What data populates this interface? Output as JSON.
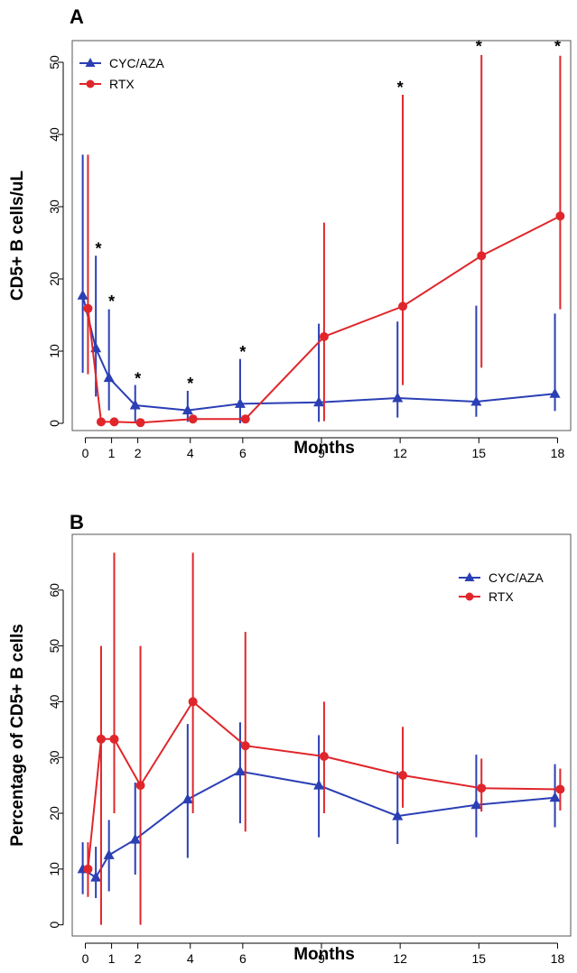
{
  "chart_data": [
    {
      "panel": "A",
      "type": "line",
      "xlabel": "Months",
      "ylabel": "CD5+ B cells/uL",
      "xticks": [
        "0",
        "1",
        "2",
        "4",
        "6",
        "9",
        "12",
        "15",
        "18"
      ],
      "yticks": [
        "0",
        "10",
        "20",
        "30",
        "40",
        "50"
      ],
      "xlim": [
        -0.5,
        18.5
      ],
      "ylim": [
        -1,
        53
      ],
      "legend": {
        "position": "top-left",
        "entries": [
          "CYC/AZA",
          "RTX"
        ]
      },
      "grid": false,
      "series": [
        {
          "name": "CYC/AZA",
          "color": "#2b3fb5",
          "marker": "triangle",
          "points": [
            {
              "x": -0.1,
              "y": 17.7,
              "lo": 7.0,
              "hi": 37.2
            },
            {
              "x": 0.4,
              "y": 10.4,
              "lo": 3.7,
              "hi": 23.2
            },
            {
              "x": 0.9,
              "y": 6.3,
              "lo": 1.8,
              "hi": 15.8
            },
            {
              "x": 1.9,
              "y": 2.5,
              "lo": 0.0,
              "hi": 5.3
            },
            {
              "x": 3.9,
              "y": 1.8,
              "lo": 0.2,
              "hi": 4.5
            },
            {
              "x": 5.9,
              "y": 2.7,
              "lo": 0.0,
              "hi": 8.9
            },
            {
              "x": 8.9,
              "y": 2.9,
              "lo": 0.2,
              "hi": 13.8
            },
            {
              "x": 11.9,
              "y": 3.5,
              "lo": 0.8,
              "hi": 14.1
            },
            {
              "x": 14.9,
              "y": 3.0,
              "lo": 0.9,
              "hi": 16.3
            },
            {
              "x": 17.9,
              "y": 4.1,
              "lo": 1.7,
              "hi": 15.2
            }
          ]
        },
        {
          "name": "RTX",
          "color": "#e0262b",
          "marker": "circle",
          "points": [
            {
              "x": 0.1,
              "y": 15.9,
              "lo": 6.8,
              "hi": 37.2
            },
            {
              "x": 0.6,
              "y": 0.2,
              "lo": 0.0,
              "hi": 0.4
            },
            {
              "x": 1.1,
              "y": 0.2,
              "lo": 0.0,
              "hi": 0.4
            },
            {
              "x": 2.1,
              "y": 0.1,
              "lo": 0.0,
              "hi": 0.3
            },
            {
              "x": 4.1,
              "y": 0.6,
              "lo": 0.2,
              "hi": 1.0
            },
            {
              "x": 6.1,
              "y": 0.6,
              "lo": 0.2,
              "hi": 1.0
            },
            {
              "x": 9.1,
              "y": 12.0,
              "lo": 0.3,
              "hi": 27.8
            },
            {
              "x": 12.1,
              "y": 16.2,
              "lo": 5.3,
              "hi": 45.5
            },
            {
              "x": 15.1,
              "y": 23.2,
              "lo": 7.7,
              "hi": 51.0
            },
            {
              "x": 18.1,
              "y": 28.7,
              "lo": 15.8,
              "hi": 50.9
            }
          ]
        }
      ],
      "annotations": [
        {
          "text": "*",
          "x": 0.5,
          "y": 24.3
        },
        {
          "text": "*",
          "x": 1.0,
          "y": 17.0
        },
        {
          "text": "*",
          "x": 2.0,
          "y": 6.3
        },
        {
          "text": "*",
          "x": 4.0,
          "y": 5.6
        },
        {
          "text": "*",
          "x": 6.0,
          "y": 10.0
        },
        {
          "text": "*",
          "x": 12.0,
          "y": 46.6
        },
        {
          "text": "*",
          "x": 15.0,
          "y": 52.3
        },
        {
          "text": "*",
          "x": 18.0,
          "y": 52.3
        }
      ]
    },
    {
      "panel": "B",
      "type": "line",
      "xlabel": "Months",
      "ylabel": "Percentage of CD5+ B cells",
      "xticks": [
        "0",
        "1",
        "2",
        "4",
        "6",
        "9",
        "12",
        "15",
        "18"
      ],
      "yticks": [
        "0",
        "10",
        "20",
        "30",
        "40",
        "50",
        "60"
      ],
      "xlim": [
        -0.5,
        18.5
      ],
      "ylim": [
        -2,
        70
      ],
      "legend": {
        "position": "top-right",
        "entries": [
          "CYC/AZA",
          "RTX"
        ]
      },
      "grid": false,
      "series": [
        {
          "name": "CYC/AZA",
          "color": "#2b3fb5",
          "marker": "triangle",
          "points": [
            {
              "x": -0.1,
              "y": 10.0,
              "lo": 5.5,
              "hi": 14.8
            },
            {
              "x": 0.4,
              "y": 8.5,
              "lo": 4.8,
              "hi": 14.0
            },
            {
              "x": 0.9,
              "y": 12.5,
              "lo": 6.0,
              "hi": 18.8
            },
            {
              "x": 1.9,
              "y": 15.3,
              "lo": 9.0,
              "hi": 25.5
            },
            {
              "x": 3.9,
              "y": 22.5,
              "lo": 12.0,
              "hi": 36.0
            },
            {
              "x": 5.9,
              "y": 27.5,
              "lo": 18.2,
              "hi": 36.3
            },
            {
              "x": 8.9,
              "y": 25.0,
              "lo": 15.7,
              "hi": 34.0
            },
            {
              "x": 11.9,
              "y": 19.5,
              "lo": 14.5,
              "hi": 27.5
            },
            {
              "x": 14.9,
              "y": 21.5,
              "lo": 15.7,
              "hi": 30.5
            },
            {
              "x": 17.9,
              "y": 22.8,
              "lo": 17.5,
              "hi": 28.8
            }
          ]
        },
        {
          "name": "RTX",
          "color": "#e0262b",
          "marker": "circle",
          "points": [
            {
              "x": 0.1,
              "y": 10.0,
              "lo": 5.0,
              "hi": 14.8
            },
            {
              "x": 0.6,
              "y": 33.3,
              "lo": 0.0,
              "hi": 50.0
            },
            {
              "x": 1.1,
              "y": 33.3,
              "lo": 20.0,
              "hi": 66.7
            },
            {
              "x": 2.1,
              "y": 25.0,
              "lo": 0.0,
              "hi": 50.0
            },
            {
              "x": 4.1,
              "y": 40.0,
              "lo": 20.0,
              "hi": 66.7
            },
            {
              "x": 6.1,
              "y": 32.1,
              "lo": 16.7,
              "hi": 52.5
            },
            {
              "x": 9.1,
              "y": 30.2,
              "lo": 20.0,
              "hi": 40.0
            },
            {
              "x": 12.1,
              "y": 26.8,
              "lo": 21.0,
              "hi": 35.5
            },
            {
              "x": 15.1,
              "y": 24.5,
              "lo": 20.3,
              "hi": 29.8
            },
            {
              "x": 18.1,
              "y": 24.3,
              "lo": 20.5,
              "hi": 28.0
            }
          ]
        }
      ],
      "annotations": []
    }
  ]
}
